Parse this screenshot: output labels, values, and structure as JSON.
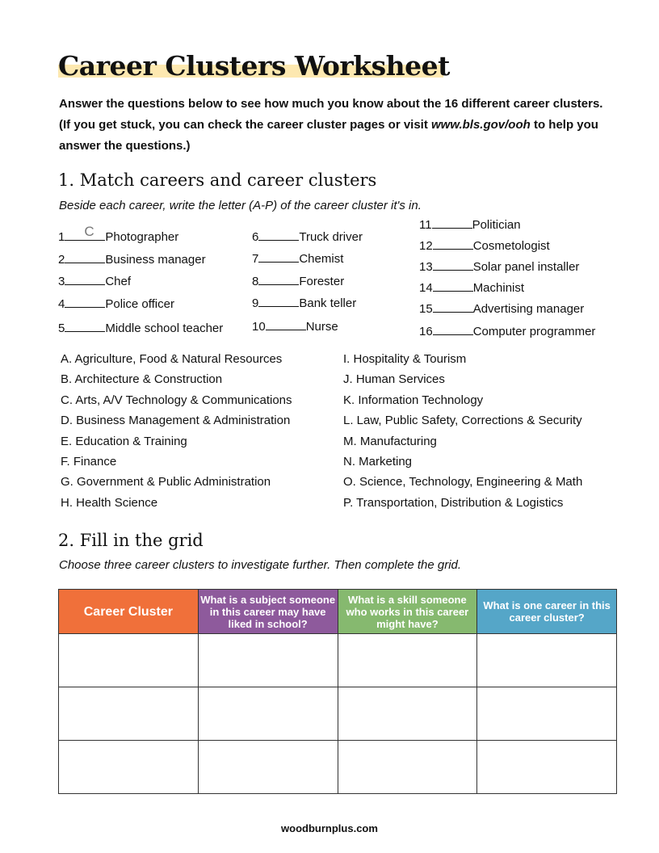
{
  "title": "Career Clusters Worksheet",
  "intro": {
    "text1": "Answer the questions below to see how much you know about the 16 different career clusters. (If you get stuck, you can check the career cluster pages or visit ",
    "link": "www.bls.gov/ooh",
    "text2": " to help you answer the questions.)"
  },
  "section1": {
    "heading": "1.  Match careers and career clusters",
    "instructions": "Beside each career, write the letter (A-P) of the career cluster it's in.",
    "careers": [
      {
        "num": "1",
        "answer": "C",
        "label": "Photographer"
      },
      {
        "num": "2",
        "answer": "",
        "label": "Business manager"
      },
      {
        "num": "3",
        "answer": "",
        "label": "Chef"
      },
      {
        "num": "4",
        "answer": "",
        "label": "Police officer"
      },
      {
        "num": "5",
        "answer": "",
        "label": "Middle school teacher"
      },
      {
        "num": "6",
        "answer": "",
        "label": "Truck driver"
      },
      {
        "num": "7",
        "answer": "",
        "label": "Chemist"
      },
      {
        "num": "8",
        "answer": "",
        "label": "Forester"
      },
      {
        "num": "9",
        "answer": "",
        "label": "Bank teller"
      },
      {
        "num": "10",
        "answer": "",
        "label": "Nurse"
      },
      {
        "num": "11",
        "answer": "",
        "label": "Politician"
      },
      {
        "num": "12",
        "answer": "",
        "label": "Cosmetologist"
      },
      {
        "num": "13",
        "answer": "",
        "label": "Solar panel installer"
      },
      {
        "num": "14",
        "answer": "",
        "label": "Machinist"
      },
      {
        "num": "15",
        "answer": "",
        "label": "Advertising manager"
      },
      {
        "num": "16",
        "answer": "",
        "label": "Computer programmer"
      }
    ],
    "clusters": [
      "A.  Agriculture, Food & Natural Resources",
      "B.  Architecture & Construction",
      "C.  Arts, A/V Technology & Communications",
      "D.  Business Management & Administration",
      "E.  Education & Training",
      "F.  Finance",
      "G.  Government & Public Administration",
      "H.  Health Science",
      "I.   Hospitality & Tourism",
      "J.   Human Services",
      "K.  Information Technology",
      "L.   Law, Public Safety, Corrections & Security",
      "M. Manufacturing",
      "N.  Marketing",
      "O.  Science, Technology, Engineering & Math",
      "P.  Transportation, Distribution & Logistics"
    ]
  },
  "section2": {
    "heading": "2.  Fill in the grid",
    "instructions": "Choose three career clusters to investigate further. Then complete the grid.",
    "columns": [
      {
        "label": "Career Cluster",
        "color": "#f0703a"
      },
      {
        "label": "What is a subject someone in this career may have liked in school?",
        "color": "#8e5a9c"
      },
      {
        "label": "What is a skill someone who works in this career might have?",
        "color": "#86b96f"
      },
      {
        "label": "What is one career in this career cluster?",
        "color": "#55a6c8"
      }
    ],
    "rows": [
      [
        "",
        "",
        "",
        ""
      ],
      [
        "",
        "",
        "",
        ""
      ],
      [
        "",
        "",
        "",
        ""
      ]
    ]
  },
  "footer": "woodburnplus.com"
}
